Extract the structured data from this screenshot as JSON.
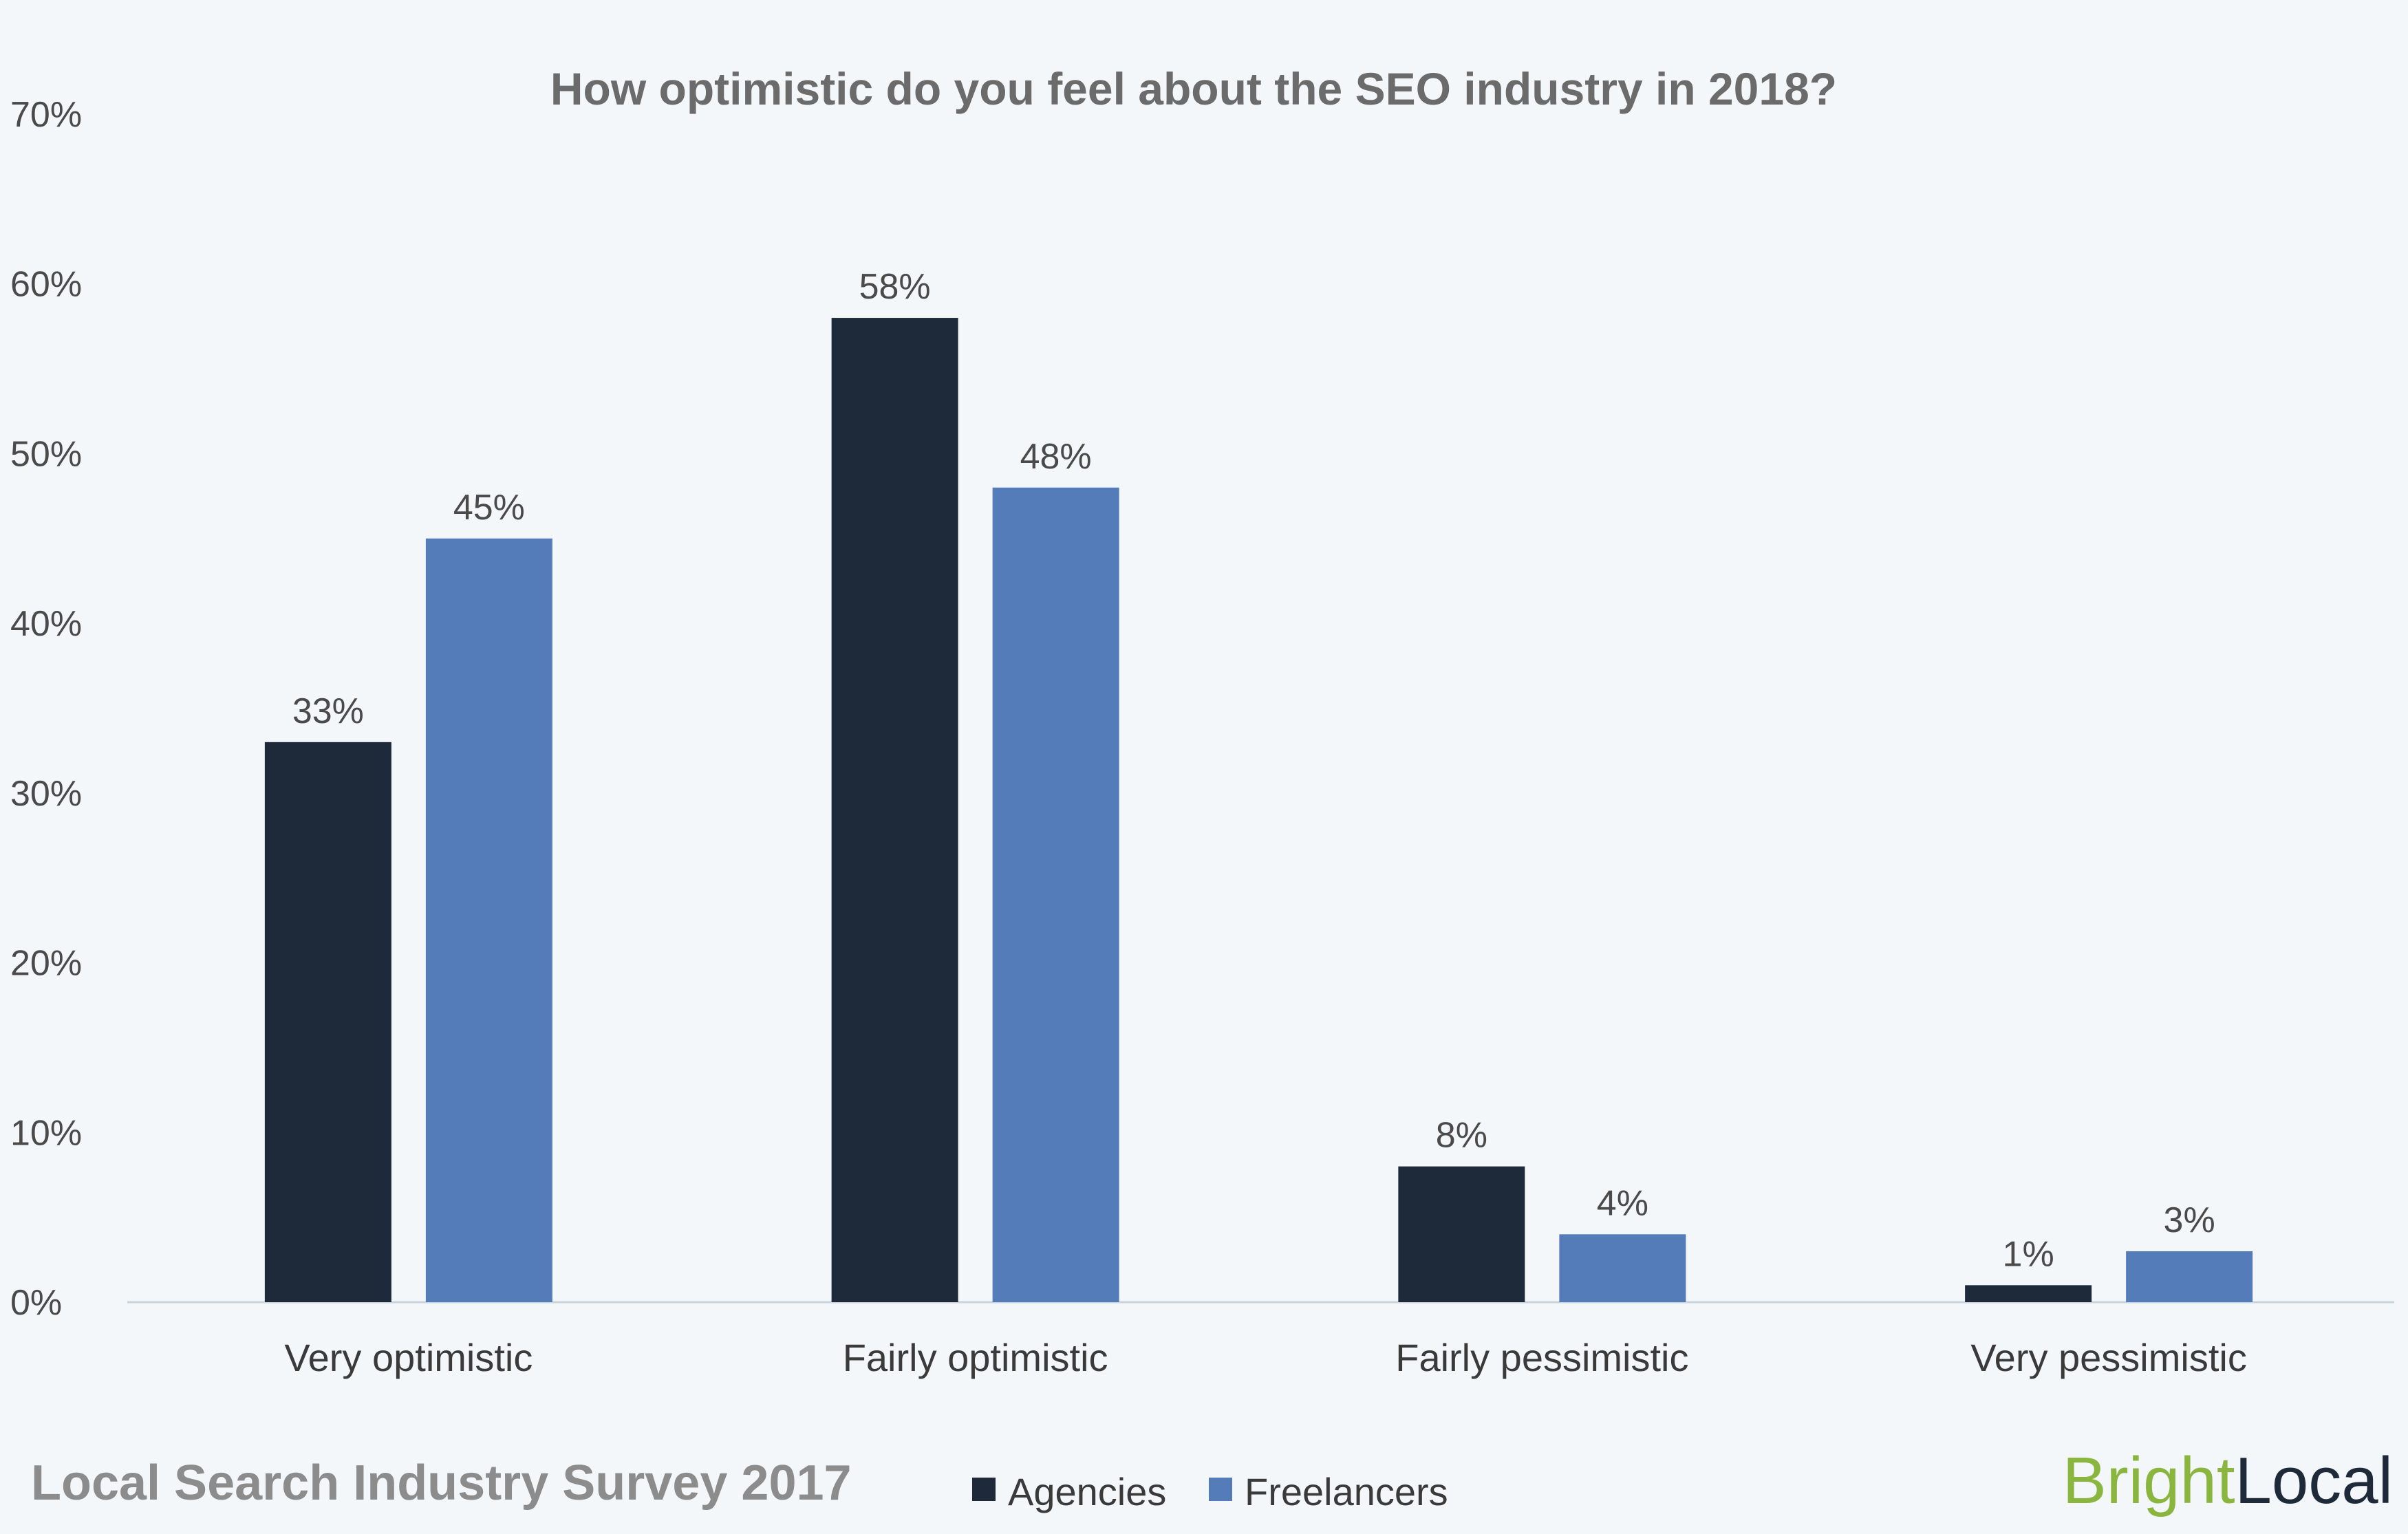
{
  "chart_data": {
    "type": "bar",
    "title": "How optimistic do you feel about the SEO industry in 2018?",
    "categories": [
      "Very optimistic",
      "Fairly optimistic",
      "Fairly pessimistic",
      "Very pessimistic"
    ],
    "series": [
      {
        "name": "Agencies",
        "values": [
          33,
          58,
          8,
          1
        ],
        "labels": [
          "33%",
          "58%",
          "8%",
          "1%"
        ],
        "color": "#1e2a3a"
      },
      {
        "name": "Freelancers",
        "values": [
          45,
          48,
          4,
          3
        ],
        "labels": [
          "45%",
          "48%",
          "4%",
          "3%"
        ],
        "color": "#547cb9"
      }
    ],
    "ylim": [
      0,
      70
    ],
    "yticks": [
      {
        "value": 0,
        "label": "0%"
      },
      {
        "value": 10,
        "label": "10%"
      },
      {
        "value": 20,
        "label": "20%"
      },
      {
        "value": 30,
        "label": "30%"
      },
      {
        "value": 40,
        "label": "40%"
      },
      {
        "value": 50,
        "label": "50%"
      },
      {
        "value": 60,
        "label": "60%"
      },
      {
        "value": 70,
        "label": "70%"
      }
    ],
    "grid": false,
    "legend": "bottom-center"
  },
  "footer": {
    "survey_title": "Local Search Industry Survey 2017",
    "brand_part1": "Bright",
    "brand_part2": "Local",
    "brand_color1": "#8ab53f",
    "brand_color2": "#1e2a3a"
  }
}
